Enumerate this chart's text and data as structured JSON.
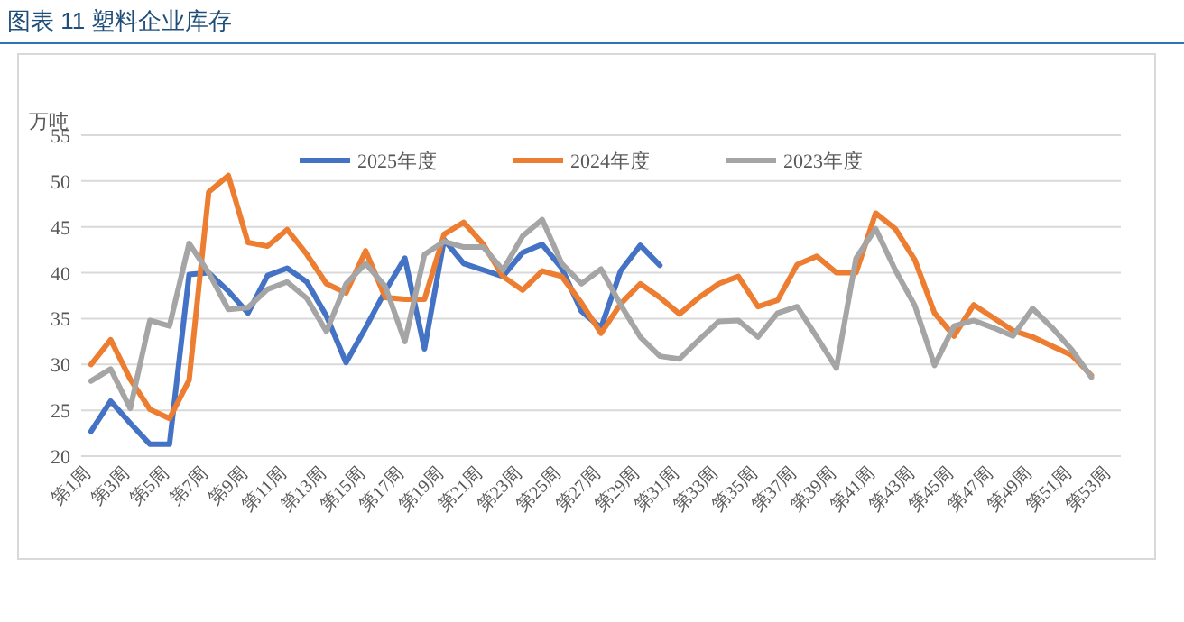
{
  "chart_data": {
    "type": "line",
    "title": "图表 11 塑料企业库存",
    "ylabel": "万吨",
    "categories": [
      "第1周",
      null,
      "第3周",
      null,
      "第5周",
      null,
      "第7周",
      null,
      "第9周",
      null,
      "第11周",
      null,
      "第13周",
      null,
      "第15周",
      null,
      "第17周",
      null,
      "第19周",
      null,
      "第21周",
      null,
      "第23周",
      null,
      "第25周",
      null,
      "第27周",
      null,
      "第29周",
      null,
      "第31周",
      null,
      "第33周",
      null,
      "第35周",
      null,
      "第37周",
      null,
      "第39周",
      null,
      "第41周",
      null,
      "第43周",
      null,
      "第45周",
      null,
      "第47周",
      null,
      "第49周",
      null,
      "第51周",
      null,
      "第53周"
    ],
    "series": [
      {
        "name": "2025年度",
        "color": "#4472c4",
        "values": [
          22.7,
          26.0,
          23.6,
          21.3,
          21.3,
          39.8,
          40.0,
          38.0,
          35.6,
          39.7,
          40.5,
          39.0,
          35.3,
          30.2,
          34.0,
          38.0,
          41.6,
          31.7,
          43.6,
          41.0,
          40.3,
          39.6,
          42.2,
          43.1,
          40.5,
          35.8,
          34.0,
          40.2,
          43.0,
          40.8,
          null,
          null,
          null,
          null,
          null,
          null,
          null,
          null,
          null,
          null,
          null,
          null,
          null,
          null,
          null,
          null,
          null,
          null,
          null,
          null,
          null,
          null,
          null
        ]
      },
      {
        "name": "2024年度",
        "color": "#ed7d31",
        "values": [
          30.0,
          32.7,
          28.4,
          25.1,
          24.1,
          28.3,
          48.8,
          50.6,
          43.3,
          42.9,
          44.7,
          42.0,
          38.8,
          37.8,
          42.4,
          37.3,
          37.1,
          37.1,
          44.2,
          45.5,
          43.1,
          39.6,
          38.1,
          40.2,
          39.6,
          36.7,
          33.4,
          36.6,
          38.8,
          37.3,
          35.5,
          37.3,
          38.8,
          39.6,
          36.3,
          37.0,
          40.9,
          41.8,
          40.0,
          40.0,
          46.5,
          44.8,
          41.4,
          35.6,
          33.1,
          36.5,
          35.1,
          33.7,
          33.0,
          32.0,
          31.0,
          28.8,
          null
        ]
      },
      {
        "name": "2023年度",
        "color": "#a5a5a5",
        "values": [
          28.2,
          29.5,
          25.2,
          34.8,
          34.2,
          43.2,
          40.0,
          36.0,
          36.2,
          38.2,
          39.0,
          37.2,
          33.6,
          38.8,
          41.0,
          38.5,
          32.5,
          42.0,
          43.4,
          42.8,
          42.8,
          40.3,
          44.0,
          45.8,
          41.0,
          38.8,
          40.4,
          36.5,
          33.0,
          30.9,
          30.6,
          32.7,
          34.7,
          34.8,
          33.0,
          35.6,
          36.3,
          33.0,
          29.6,
          41.6,
          44.8,
          40.3,
          36.4,
          29.9,
          34.2,
          34.8,
          34.0,
          33.1,
          36.1,
          34.0,
          31.6,
          28.6,
          null
        ]
      }
    ],
    "ylim": [
      20,
      55
    ],
    "yticks": [
      20,
      25,
      30,
      35,
      40,
      45,
      50,
      55
    ],
    "grid": "y",
    "legend": "top",
    "line_style": "solid"
  }
}
